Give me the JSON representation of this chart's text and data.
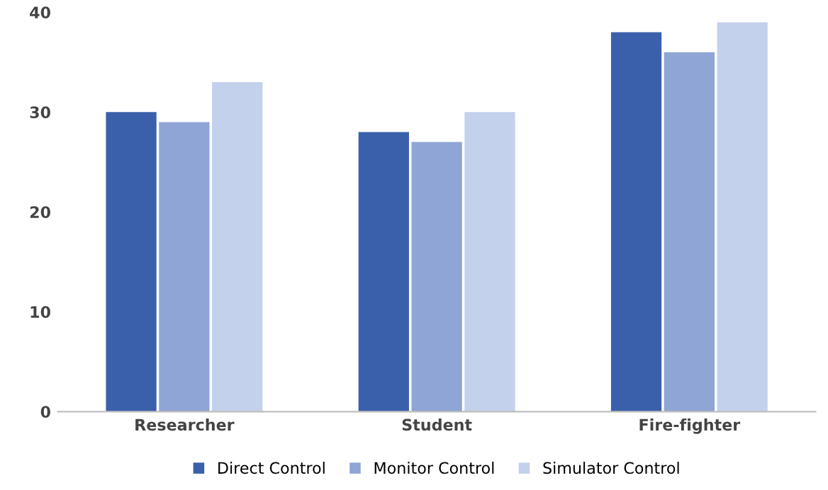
{
  "chart_data": {
    "type": "bar",
    "categories": [
      "Researcher",
      "Student",
      "Fire-fighter"
    ],
    "series": [
      {
        "name": "Direct Control",
        "color": "#3a5fab",
        "values": [
          30,
          28,
          38
        ]
      },
      {
        "name": "Monitor Control",
        "color": "#8fa5d6",
        "values": [
          29,
          27,
          36
        ]
      },
      {
        "name": "Simulator Control",
        "color": "#c3d1ec",
        "values": [
          33,
          30,
          39
        ]
      }
    ],
    "ylim": [
      0,
      40
    ],
    "yticks": [
      0,
      10,
      20,
      30,
      40
    ],
    "grid": false,
    "legend": "bottom"
  }
}
